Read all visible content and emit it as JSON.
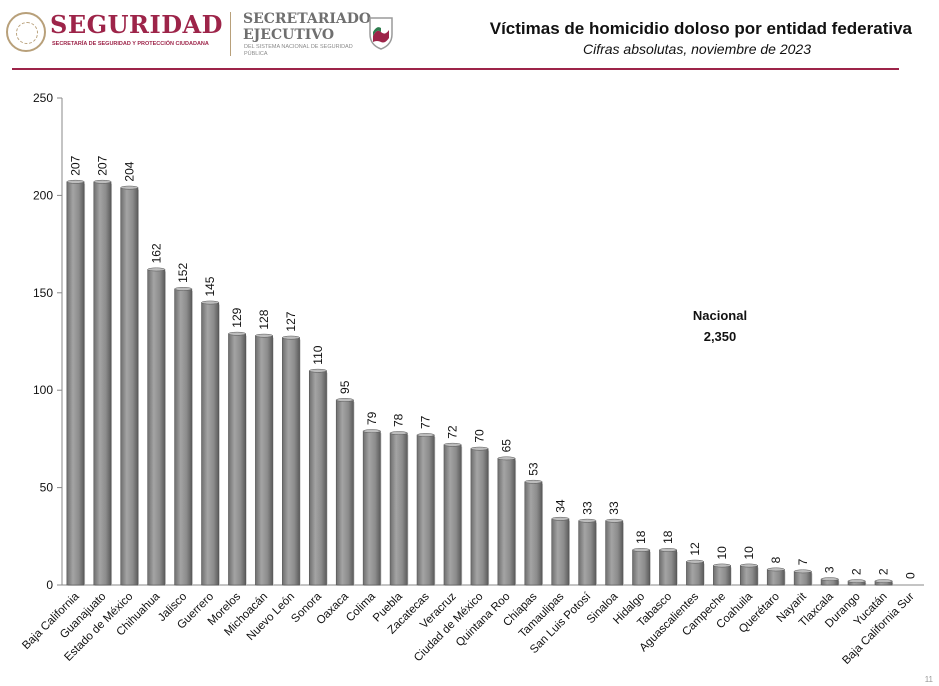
{
  "header": {
    "brand_main": "SEGURIDAD",
    "brand_sub": "SECRETARÍA DE SEGURIDAD Y PROTECCIÓN CIUDADANA",
    "sec_title": "SECRETARIADO EJECUTIVO",
    "sec_sub": "DEL SISTEMA NACIONAL DE SEGURIDAD PÚBLICA"
  },
  "chart_data": {
    "type": "bar",
    "title": "Víctimas de homicidio doloso por entidad federativa",
    "subtitle": "Cifras absolutas, noviembre de 2023",
    "xlabel": "",
    "ylabel": "",
    "ylim": [
      0,
      250
    ],
    "yticks": [
      0,
      50,
      100,
      150,
      200,
      250
    ],
    "grid": false,
    "bar_color": "#8c8c8c",
    "categories": [
      "Baja California",
      "Guanajuato",
      "Estado de México",
      "Chihuahua",
      "Jalisco",
      "Guerrero",
      "Morelos",
      "Michoacán",
      "Nuevo León",
      "Sonora",
      "Oaxaca",
      "Colima",
      "Puebla",
      "Zacatecas",
      "Veracruz",
      "Ciudad de México",
      "Quintana Roo",
      "Chiapas",
      "Tamaulipas",
      "San Luis Potosí",
      "Sinaloa",
      "Hidalgo",
      "Tabasco",
      "Aguascalientes",
      "Campeche",
      "Coahuila",
      "Querétaro",
      "Nayarit",
      "Tlaxcala",
      "Durango",
      "Yucatán",
      "Baja California Sur"
    ],
    "values": [
      207,
      207,
      204,
      162,
      152,
      145,
      129,
      128,
      127,
      110,
      95,
      79,
      78,
      77,
      72,
      70,
      65,
      53,
      34,
      33,
      33,
      18,
      18,
      12,
      10,
      10,
      8,
      7,
      3,
      2,
      2,
      0
    ],
    "annotation": {
      "label": "Nacional",
      "value": "2,350"
    }
  },
  "footer": {
    "page": "11"
  }
}
